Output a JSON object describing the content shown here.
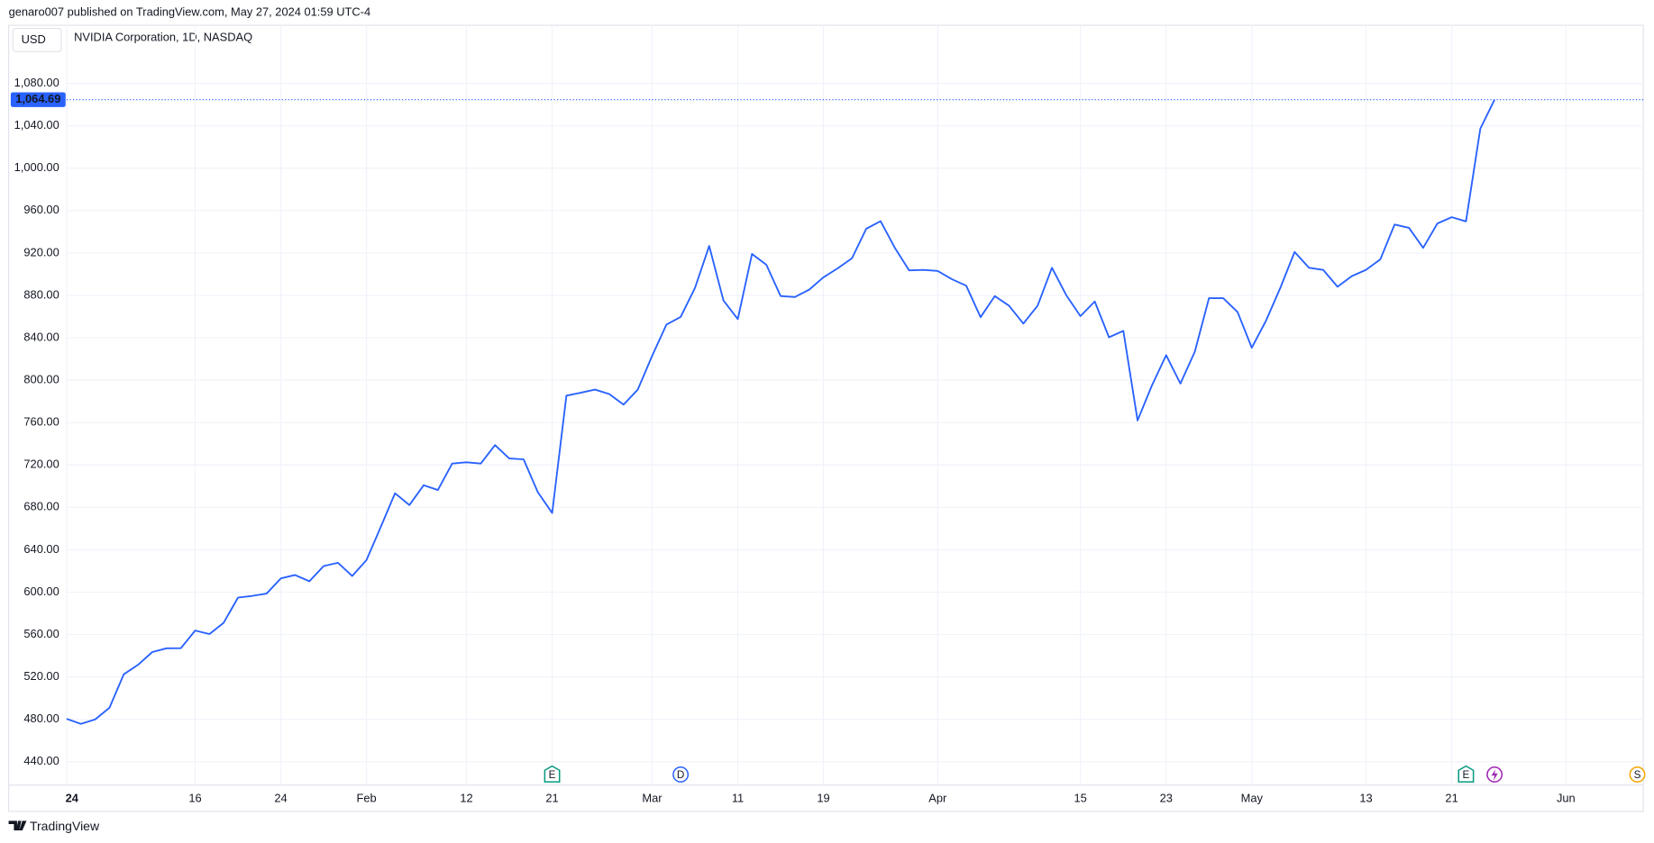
{
  "header": {
    "published": "genaro007 published on TradingView.com, May 27, 2024 01:59 UTC-4",
    "currency": "USD",
    "symbol": "NVIDIA Corporation, 1D, NASDAQ"
  },
  "footer": {
    "brand": "TradingView"
  },
  "chart_data": {
    "type": "line",
    "categories": [
      "24",
      null,
      null,
      null,
      null,
      null,
      null,
      null,
      null,
      "16",
      null,
      null,
      null,
      null,
      null,
      "24",
      null,
      null,
      null,
      null,
      null,
      "Feb",
      null,
      null,
      null,
      null,
      null,
      null,
      "12",
      null,
      null,
      null,
      null,
      null,
      "21",
      null,
      null,
      null,
      null,
      null,
      null,
      "Mar",
      null,
      null,
      null,
      null,
      null,
      "11",
      null,
      null,
      null,
      null,
      null,
      "19",
      null,
      null,
      null,
      null,
      null,
      null,
      null,
      "Apr",
      null,
      null,
      null,
      null,
      null,
      null,
      null,
      null,
      null,
      "15",
      null,
      null,
      null,
      null,
      null,
      "23",
      null,
      null,
      null,
      null,
      null,
      "May",
      null,
      null,
      null,
      null,
      null,
      null,
      null,
      "13",
      null,
      null,
      null,
      null,
      null,
      "21",
      null,
      null,
      null,
      null,
      null,
      null,
      null,
      "Jun",
      null,
      null,
      null,
      null,
      null
    ],
    "series": [
      {
        "name": "NVIDIA Corporation",
        "color": "#2962ff",
        "values": [
          480.4,
          475.7,
          479.9,
          490.9,
          522.5,
          531.4,
          543.5,
          547.1,
          547.2,
          563.8,
          560.5,
          571.1,
          594.9,
          596.5,
          598.7,
          613.0,
          616.2,
          610.3,
          624.6,
          627.7,
          615.3,
          630.3,
          661.6,
          693.3,
          682.2,
          700.9,
          696.4,
          721.3,
          722.5,
          721.3,
          738.7,
          726.1,
          725.3,
          694.3,
          674.7,
          785.4,
          788.2,
          791.1,
          787.0,
          776.9,
          791.1,
          822.8,
          852.4,
          859.6,
          887.0,
          926.7,
          875.3,
          857.7,
          919.1,
          908.9,
          879.4,
          878.4,
          885.4,
          897.0,
          905.6,
          915.0,
          942.9,
          950.0,
          925.0,
          903.6,
          904.1,
          903.1,
          895.2,
          889.2,
          859.4,
          879.3,
          870.3,
          853.4,
          870.3,
          906.1,
          880.3,
          860.4,
          874.3,
          840.5,
          846.5,
          762.0,
          794.8,
          823.6,
          796.8,
          826.6,
          877.3,
          877.3,
          864.3,
          830.6,
          856.4,
          887.2,
          921.0,
          906.1,
          904.1,
          888.2,
          898.1,
          904.1,
          914.0,
          946.8,
          943.8,
          924.9,
          947.8,
          953.8,
          949.8,
          1037.3,
          1064.69,
          null,
          null,
          null,
          null,
          null,
          null,
          null,
          null,
          null,
          null
        ]
      }
    ],
    "last_value_label": "1,064.69",
    "ylim": [
      418,
      1109
    ],
    "yticks": [
      {
        "value": 440,
        "label": "440.00"
      },
      {
        "value": 480,
        "label": "480.00"
      },
      {
        "value": 520,
        "label": "520.00"
      },
      {
        "value": 560,
        "label": "560.00"
      },
      {
        "value": 600,
        "label": "600.00"
      },
      {
        "value": 640,
        "label": "640.00"
      },
      {
        "value": 680,
        "label": "680.00"
      },
      {
        "value": 720,
        "label": "720.00"
      },
      {
        "value": 760,
        "label": "760.00"
      },
      {
        "value": 800,
        "label": "800.00"
      },
      {
        "value": 840,
        "label": "840.00"
      },
      {
        "value": 880,
        "label": "880.00"
      },
      {
        "value": 920,
        "label": "920.00"
      },
      {
        "value": 960,
        "label": "960.00"
      },
      {
        "value": 1000,
        "label": "1,000.00"
      },
      {
        "value": 1040,
        "label": "1,040.00"
      },
      {
        "value": 1080,
        "label": "1,080.00"
      }
    ],
    "grid": true,
    "events": [
      {
        "label": "E",
        "color": "#089981"
      },
      {
        "label": "D",
        "color": "#2962ff"
      },
      {
        "label": "E",
        "color": "#089981"
      },
      {
        "label": "S",
        "color": "#f7a600"
      }
    ]
  }
}
